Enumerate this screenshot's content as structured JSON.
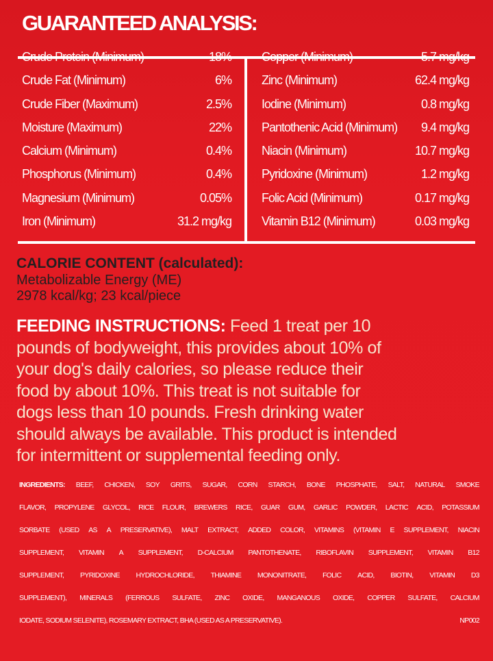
{
  "guaranteed_analysis": {
    "title": "GUARANTEED ANALYSIS:",
    "left": [
      {
        "label": "Crude Protein (Minimum)",
        "value": "18%"
      },
      {
        "label": "Crude Fat (Minimum)",
        "value": "6%"
      },
      {
        "label": "Crude Fiber (Maximum)",
        "value": "2.5%"
      },
      {
        "label": "Moisture (Maximum)",
        "value": "22%"
      },
      {
        "label": "Calcium (Minimum)",
        "value": "0.4%"
      },
      {
        "label": "Phosphorus (Minimum)",
        "value": "0.4%"
      },
      {
        "label": "Magnesium (Minimum)",
        "value": "0.05%"
      },
      {
        "label": "Iron (Minimum)",
        "value": "31.2 mg/kg"
      }
    ],
    "right": [
      {
        "label": "Copper (Minimum)",
        "value": "5.7 mg/kg"
      },
      {
        "label": "Zinc (Minimum)",
        "value": "62.4 mg/kg"
      },
      {
        "label": "Iodine (Minimum)",
        "value": "0.8 mg/kg"
      },
      {
        "label": "Pantothenic Acid (Minimum)",
        "value": "9.4 mg/kg"
      },
      {
        "label": "Niacin (Minimum)",
        "value": "10.7 mg/kg"
      },
      {
        "label": "Pyridoxine (Minimum)",
        "value": "1.2 mg/kg"
      },
      {
        "label": "Folic Acid (Minimum)",
        "value": "0.17 mg/kg"
      },
      {
        "label": "Vitamin B12 (Minimum)",
        "value": "0.03 mg/kg"
      }
    ]
  },
  "calorie_content": {
    "heading": "CALORIE CONTENT (calculated):",
    "lines": [
      "Metabolizable Energy (ME)",
      "2978 kcal/kg; 23 kcal/piece"
    ]
  },
  "feeding_instructions": {
    "heading": "FEEDING INSTRUCTIONS:",
    "lines": [
      " Feed 1 treat per 10",
      "pounds of bodyweight, this provides about 10% of",
      "your dog's daily calories, so please reduce their",
      "food by about 10%. This treat is not suitable for",
      "dogs less than 10 pounds. Fresh drinking water",
      "should always be available. This product is intended",
      "for intermittent or supplemental feeding only."
    ]
  },
  "ingredients": {
    "heading": "INGREDIENTS:",
    "lines": [
      "BEEF, CHICKEN, SOY GRITS, SUGAR, CORN STARCH, BONE PHOSPHATE, SALT, NATURAL SMOKE",
      "FLAVOR, PROPYLENE GLYCOL, RICE FLOUR, BREWERS RICE, GUAR GUM, GARLIC POWDER, LACTIC ACID, POTASSIUM",
      "SORBATE (USED AS A PRESERVATIVE), MALT EXTRACT, ADDED COLOR, VITAMINS (VITAMIN E SUPPLEMENT, NIACIN",
      "SUPPLEMENT, VITAMIN A SUPPLEMENT, D-CALCIUM PANTOTHENATE, RIBOFLAVIN SUPPLEMENT, VITAMIN B12",
      "SUPPLEMENT, PYRIDOXINE HYDROCHLORIDE, THIAMINE MONONITRATE, FOLIC ACID, BIOTIN, VITAMIN D3",
      "SUPPLEMENT), MINERALS (FERROUS SULFATE, ZINC OXIDE, MANGANOUS OXIDE, COPPER SULFATE, CALCIUM",
      "IODATE, SODIUM SELENITE), ROSEMARY EXTRACT, BHA (USED AS A PRESERVATIVE)."
    ],
    "code": "NP002"
  },
  "colors": {
    "background": "#e31b23",
    "calorie_text": "#231f20",
    "feeding_text": "#f7e4cc",
    "heading": "#ffffff"
  }
}
